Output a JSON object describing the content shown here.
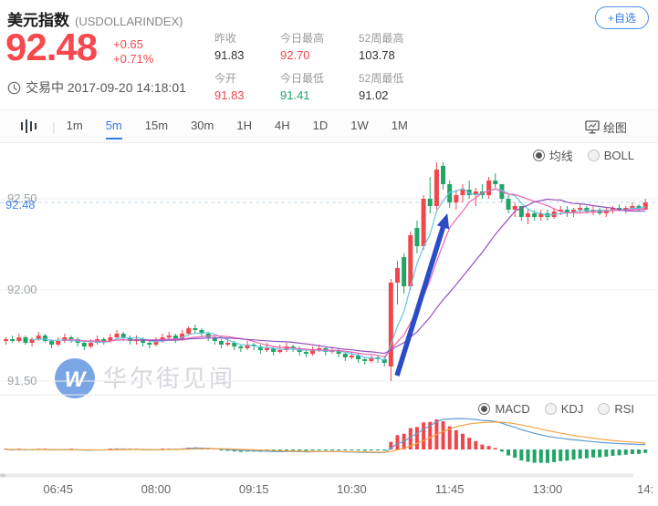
{
  "header": {
    "title": "美元指数",
    "symbol": "(USDOLLARINDEX)",
    "watchlist_button": "+自选",
    "price": "92.48",
    "change": "+0.65",
    "change_pct": "+0.71%",
    "status_label": "交易中",
    "timestamp": "2017-09-20 14:18:01",
    "stats": [
      {
        "label": "昨收",
        "value": "91.83",
        "color": "#333333"
      },
      {
        "label": "今日最高",
        "value": "92.70",
        "color": "#f0474d"
      },
      {
        "label": "52周最高",
        "value": "103.78",
        "color": "#333333"
      },
      {
        "label": "今开",
        "value": "91.83",
        "color": "#f0474d"
      },
      {
        "label": "今日最低",
        "value": "91.41",
        "color": "#21a567"
      },
      {
        "label": "52周最低",
        "value": "91.02",
        "color": "#333333"
      }
    ]
  },
  "toolbar": {
    "timeframes": [
      "1m",
      "5m",
      "15m",
      "30m",
      "1H",
      "4H",
      "1D",
      "1W",
      "1M"
    ],
    "selected_timeframe": "5m",
    "draw_label": "绘图"
  },
  "overlay_selector": {
    "options": [
      "均线",
      "BOLL"
    ],
    "selected": "均线"
  },
  "indicator_selector": {
    "options": [
      "MACD",
      "KDJ",
      "RSI"
    ],
    "selected": "MACD"
  },
  "watermark_text": "华尔街见闻",
  "chart_data": {
    "type": "candlestick",
    "interval": "5m",
    "start_time": "06:05",
    "x_ticks": [
      {
        "label": "06:45",
        "index": 8
      },
      {
        "label": "08:00",
        "index": 23
      },
      {
        "label": "09:15",
        "index": 38
      },
      {
        "label": "10:30",
        "index": 53
      },
      {
        "label": "11:45",
        "index": 68
      },
      {
        "label": "13:00",
        "index": 83
      },
      {
        "label": "14:",
        "index": 98
      }
    ],
    "y_ticks": [
      {
        "label": "92.50",
        "price": 92.5
      },
      {
        "label": "92.00",
        "price": 92.0
      },
      {
        "label": "91.50",
        "price": 91.5
      }
    ],
    "last_price_label": {
      "text": "92.48",
      "price": 92.48
    },
    "ylim": [
      91.44,
      92.8
    ],
    "overlays": [
      {
        "name": "MA5",
        "period": 5,
        "color": "#66c4e4"
      },
      {
        "name": "MA10",
        "period": 10,
        "color": "#ef63b0"
      },
      {
        "name": "MA20",
        "period": 20,
        "color": "#9550c0"
      }
    ],
    "lower_indicator": {
      "name": "MACD",
      "dif_color": "#5b9bd5",
      "dea_color": "#f6a445"
    },
    "annotation_arrow": {
      "from_index": 60,
      "from_price": 91.53,
      "to_index": 68,
      "to_price": 92.42,
      "color": "#2b4cc4"
    },
    "colors": {
      "up": "#f0474d",
      "down": "#21a567",
      "grid": "#efeff2",
      "axis_text": "#666666",
      "y_label": "#9aa1a8",
      "last_price": "#4a86e8",
      "watermark_blue": "#7aa6e6",
      "watermark_gray": "#d6d6de"
    },
    "candles": [
      [
        91.72,
        91.74,
        91.7,
        91.73
      ],
      [
        91.73,
        91.75,
        91.71,
        91.72
      ],
      [
        91.72,
        91.76,
        91.71,
        91.74
      ],
      [
        91.74,
        91.75,
        91.7,
        91.71
      ],
      [
        91.71,
        91.74,
        91.69,
        91.73
      ],
      [
        91.73,
        91.77,
        91.72,
        91.75
      ],
      [
        91.75,
        91.76,
        91.71,
        91.72
      ],
      [
        91.72,
        91.73,
        91.68,
        91.7
      ],
      [
        91.7,
        91.74,
        91.69,
        91.72
      ],
      [
        91.72,
        91.76,
        91.71,
        91.74
      ],
      [
        91.74,
        91.75,
        91.71,
        91.73
      ],
      [
        91.73,
        91.74,
        91.69,
        91.71
      ],
      [
        91.71,
        91.72,
        91.67,
        91.69
      ],
      [
        91.69,
        91.73,
        91.68,
        91.71
      ],
      [
        91.71,
        91.75,
        91.7,
        91.73
      ],
      [
        91.73,
        91.74,
        91.7,
        91.72
      ],
      [
        91.72,
        91.76,
        91.71,
        91.74
      ],
      [
        91.74,
        91.78,
        91.73,
        91.76
      ],
      [
        91.76,
        91.77,
        91.72,
        91.74
      ],
      [
        91.74,
        91.75,
        91.7,
        91.72
      ],
      [
        91.72,
        91.75,
        91.7,
        91.73
      ],
      [
        91.73,
        91.74,
        91.69,
        91.71
      ],
      [
        91.71,
        91.72,
        91.68,
        91.7
      ],
      [
        91.7,
        91.74,
        91.69,
        91.72
      ],
      [
        91.72,
        91.76,
        91.71,
        91.74
      ],
      [
        91.74,
        91.77,
        91.73,
        91.75
      ],
      [
        91.75,
        91.76,
        91.71,
        91.73
      ],
      [
        91.73,
        91.78,
        91.72,
        91.76
      ],
      [
        91.76,
        91.8,
        91.75,
        91.79
      ],
      [
        91.79,
        91.81,
        91.76,
        91.78
      ],
      [
        91.78,
        91.79,
        91.74,
        91.76
      ],
      [
        91.76,
        91.77,
        91.72,
        91.74
      ],
      [
        91.74,
        91.75,
        91.7,
        91.72
      ],
      [
        91.72,
        91.73,
        91.68,
        91.7
      ],
      [
        91.7,
        91.74,
        91.69,
        91.71
      ],
      [
        91.71,
        91.72,
        91.67,
        91.69
      ],
      [
        91.69,
        91.7,
        91.66,
        91.68
      ],
      [
        91.68,
        91.72,
        91.67,
        91.7
      ],
      [
        91.7,
        91.71,
        91.67,
        91.69
      ],
      [
        91.69,
        91.7,
        91.65,
        91.67
      ],
      [
        91.67,
        91.71,
        91.66,
        91.68
      ],
      [
        91.68,
        91.69,
        91.64,
        91.66
      ],
      [
        91.66,
        91.7,
        91.65,
        91.67
      ],
      [
        91.67,
        91.71,
        91.66,
        91.69
      ],
      [
        91.69,
        91.7,
        91.66,
        91.68
      ],
      [
        91.68,
        91.69,
        91.64,
        91.66
      ],
      [
        91.66,
        91.67,
        91.63,
        91.65
      ],
      [
        91.65,
        91.69,
        91.64,
        91.67
      ],
      [
        91.67,
        91.7,
        91.66,
        91.68
      ],
      [
        91.68,
        91.69,
        91.64,
        91.66
      ],
      [
        91.66,
        91.69,
        91.65,
        91.67
      ],
      [
        91.67,
        91.68,
        91.63,
        91.65
      ],
      [
        91.65,
        91.66,
        91.61,
        91.63
      ],
      [
        91.63,
        91.66,
        91.62,
        91.64
      ],
      [
        91.64,
        91.65,
        91.6,
        91.62
      ],
      [
        91.62,
        91.63,
        91.59,
        91.61
      ],
      [
        91.61,
        91.64,
        91.6,
        91.63
      ],
      [
        91.63,
        91.64,
        91.6,
        91.62
      ],
      [
        91.62,
        91.63,
        91.58,
        91.6
      ],
      [
        91.58,
        92.06,
        91.5,
        92.04
      ],
      [
        92.04,
        92.16,
        91.92,
        92.12
      ],
      [
        92.18,
        92.2,
        91.98,
        92.02
      ],
      [
        92.02,
        92.32,
        92.0,
        92.3
      ],
      [
        92.34,
        92.38,
        92.2,
        92.24
      ],
      [
        92.24,
        92.52,
        92.22,
        92.5
      ],
      [
        92.5,
        92.62,
        92.42,
        92.46
      ],
      [
        92.46,
        92.7,
        92.44,
        92.66
      ],
      [
        92.68,
        92.7,
        92.55,
        92.58
      ],
      [
        92.58,
        92.6,
        92.45,
        92.48
      ],
      [
        92.48,
        92.55,
        92.44,
        92.52
      ],
      [
        92.52,
        92.58,
        92.48,
        92.55
      ],
      [
        92.55,
        92.6,
        92.5,
        92.52
      ],
      [
        92.52,
        92.56,
        92.46,
        92.54
      ],
      [
        92.54,
        92.58,
        92.5,
        92.52
      ],
      [
        92.52,
        92.62,
        92.5,
        92.6
      ],
      [
        92.6,
        92.64,
        92.56,
        92.58
      ],
      [
        92.58,
        92.58,
        92.48,
        92.5
      ],
      [
        92.5,
        92.52,
        92.42,
        92.44
      ],
      [
        92.44,
        92.48,
        92.4,
        92.46
      ],
      [
        92.46,
        92.46,
        92.38,
        92.4
      ],
      [
        92.4,
        92.44,
        92.36,
        92.42
      ],
      [
        92.42,
        92.44,
        92.38,
        92.4
      ],
      [
        92.4,
        92.44,
        92.38,
        92.42
      ],
      [
        92.42,
        92.44,
        92.38,
        92.4
      ],
      [
        92.4,
        92.45,
        92.39,
        92.43
      ],
      [
        92.43,
        92.46,
        92.41,
        92.44
      ],
      [
        92.44,
        92.46,
        92.4,
        92.42
      ],
      [
        92.42,
        92.45,
        92.4,
        92.44
      ],
      [
        92.44,
        92.47,
        92.42,
        92.45
      ],
      [
        92.45,
        92.46,
        92.42,
        92.43
      ],
      [
        92.43,
        92.46,
        92.41,
        92.44
      ],
      [
        92.44,
        92.45,
        92.41,
        92.42
      ],
      [
        92.42,
        92.45,
        92.4,
        92.44
      ],
      [
        92.44,
        92.46,
        92.42,
        92.45
      ],
      [
        92.45,
        92.47,
        92.43,
        92.44
      ],
      [
        92.44,
        92.46,
        92.42,
        92.45
      ],
      [
        92.45,
        92.48,
        92.43,
        92.46
      ],
      [
        92.46,
        92.47,
        92.43,
        92.44
      ],
      [
        92.44,
        92.5,
        92.44,
        92.48
      ]
    ]
  }
}
